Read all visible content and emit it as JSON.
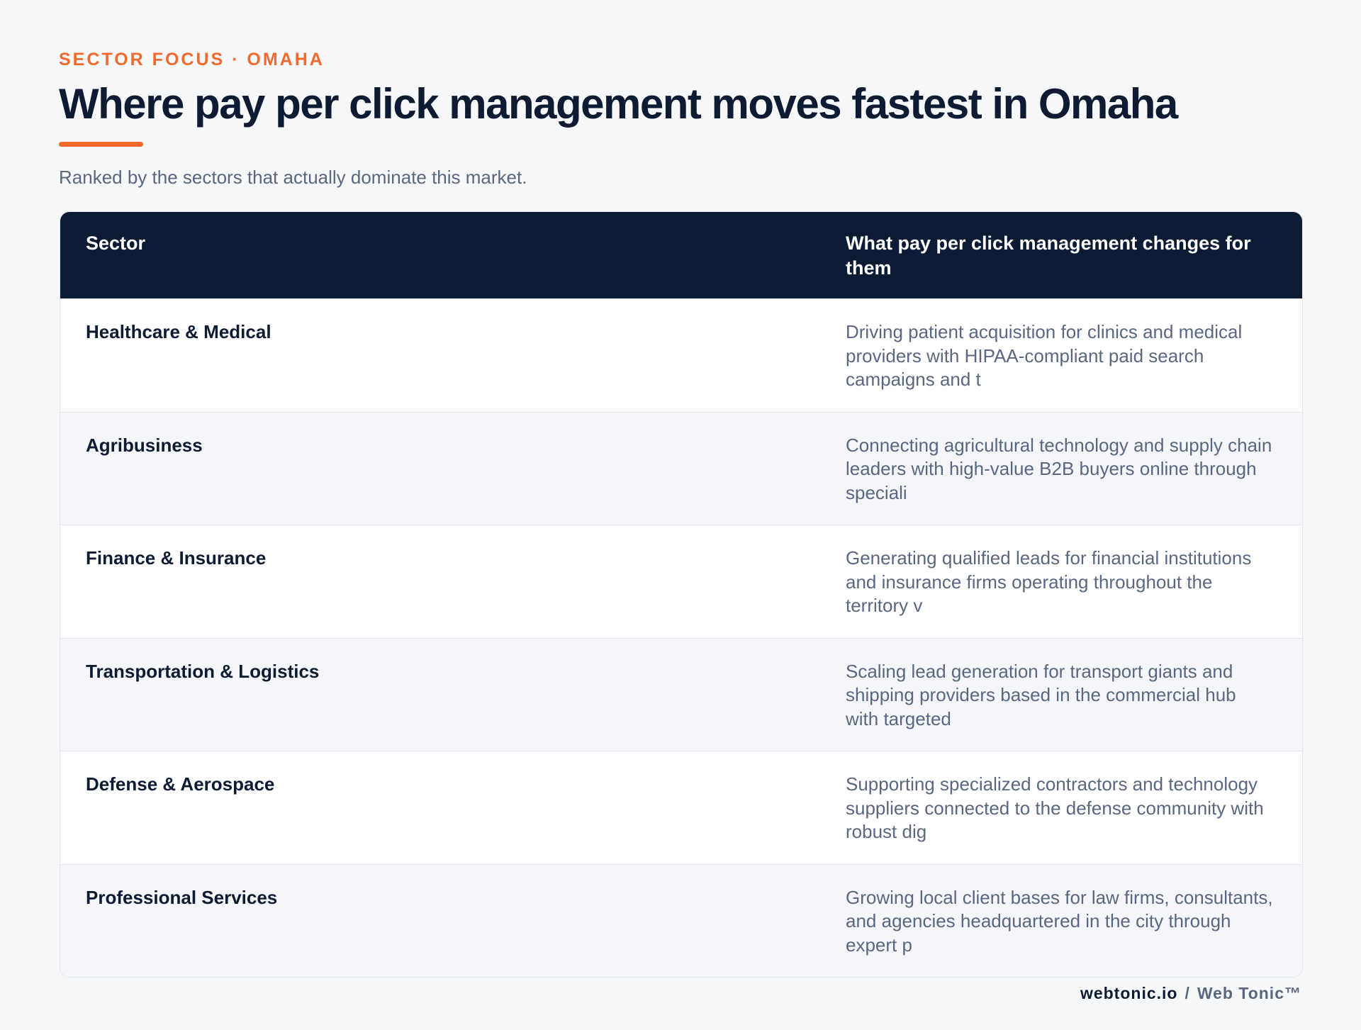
{
  "header": {
    "eyebrow": "SECTOR FOCUS · OMAHA",
    "title": "Where pay per click management moves fastest in Omaha",
    "subtitle": "Ranked by the sectors that actually dominate this market."
  },
  "table": {
    "columns": [
      "Sector",
      "What pay per click management changes for them"
    ],
    "rows": [
      [
        "Healthcare & Medical",
        "Driving patient acquisition for clinics and medical providers with HIPAA-compliant paid search campaigns and t"
      ],
      [
        "Agribusiness",
        "Connecting agricultural technology and supply chain leaders with high-value B2B buyers online through speciali"
      ],
      [
        "Finance & Insurance",
        "Generating qualified leads for financial institutions and insurance firms operating throughout the territory v"
      ],
      [
        "Transportation & Logistics",
        "Scaling lead generation for transport giants and shipping providers based in the commercial hub with targeted"
      ],
      [
        "Defense & Aerospace",
        "Supporting specialized contractors and technology suppliers connected to the defense community with robust dig"
      ],
      [
        "Professional Services",
        "Growing local client bases for law firms, consultants, and agencies headquartered in the city through expert p"
      ]
    ]
  },
  "footer": {
    "site": "webtonic.io",
    "separator": "/",
    "brand": "Web Tonic™"
  }
}
